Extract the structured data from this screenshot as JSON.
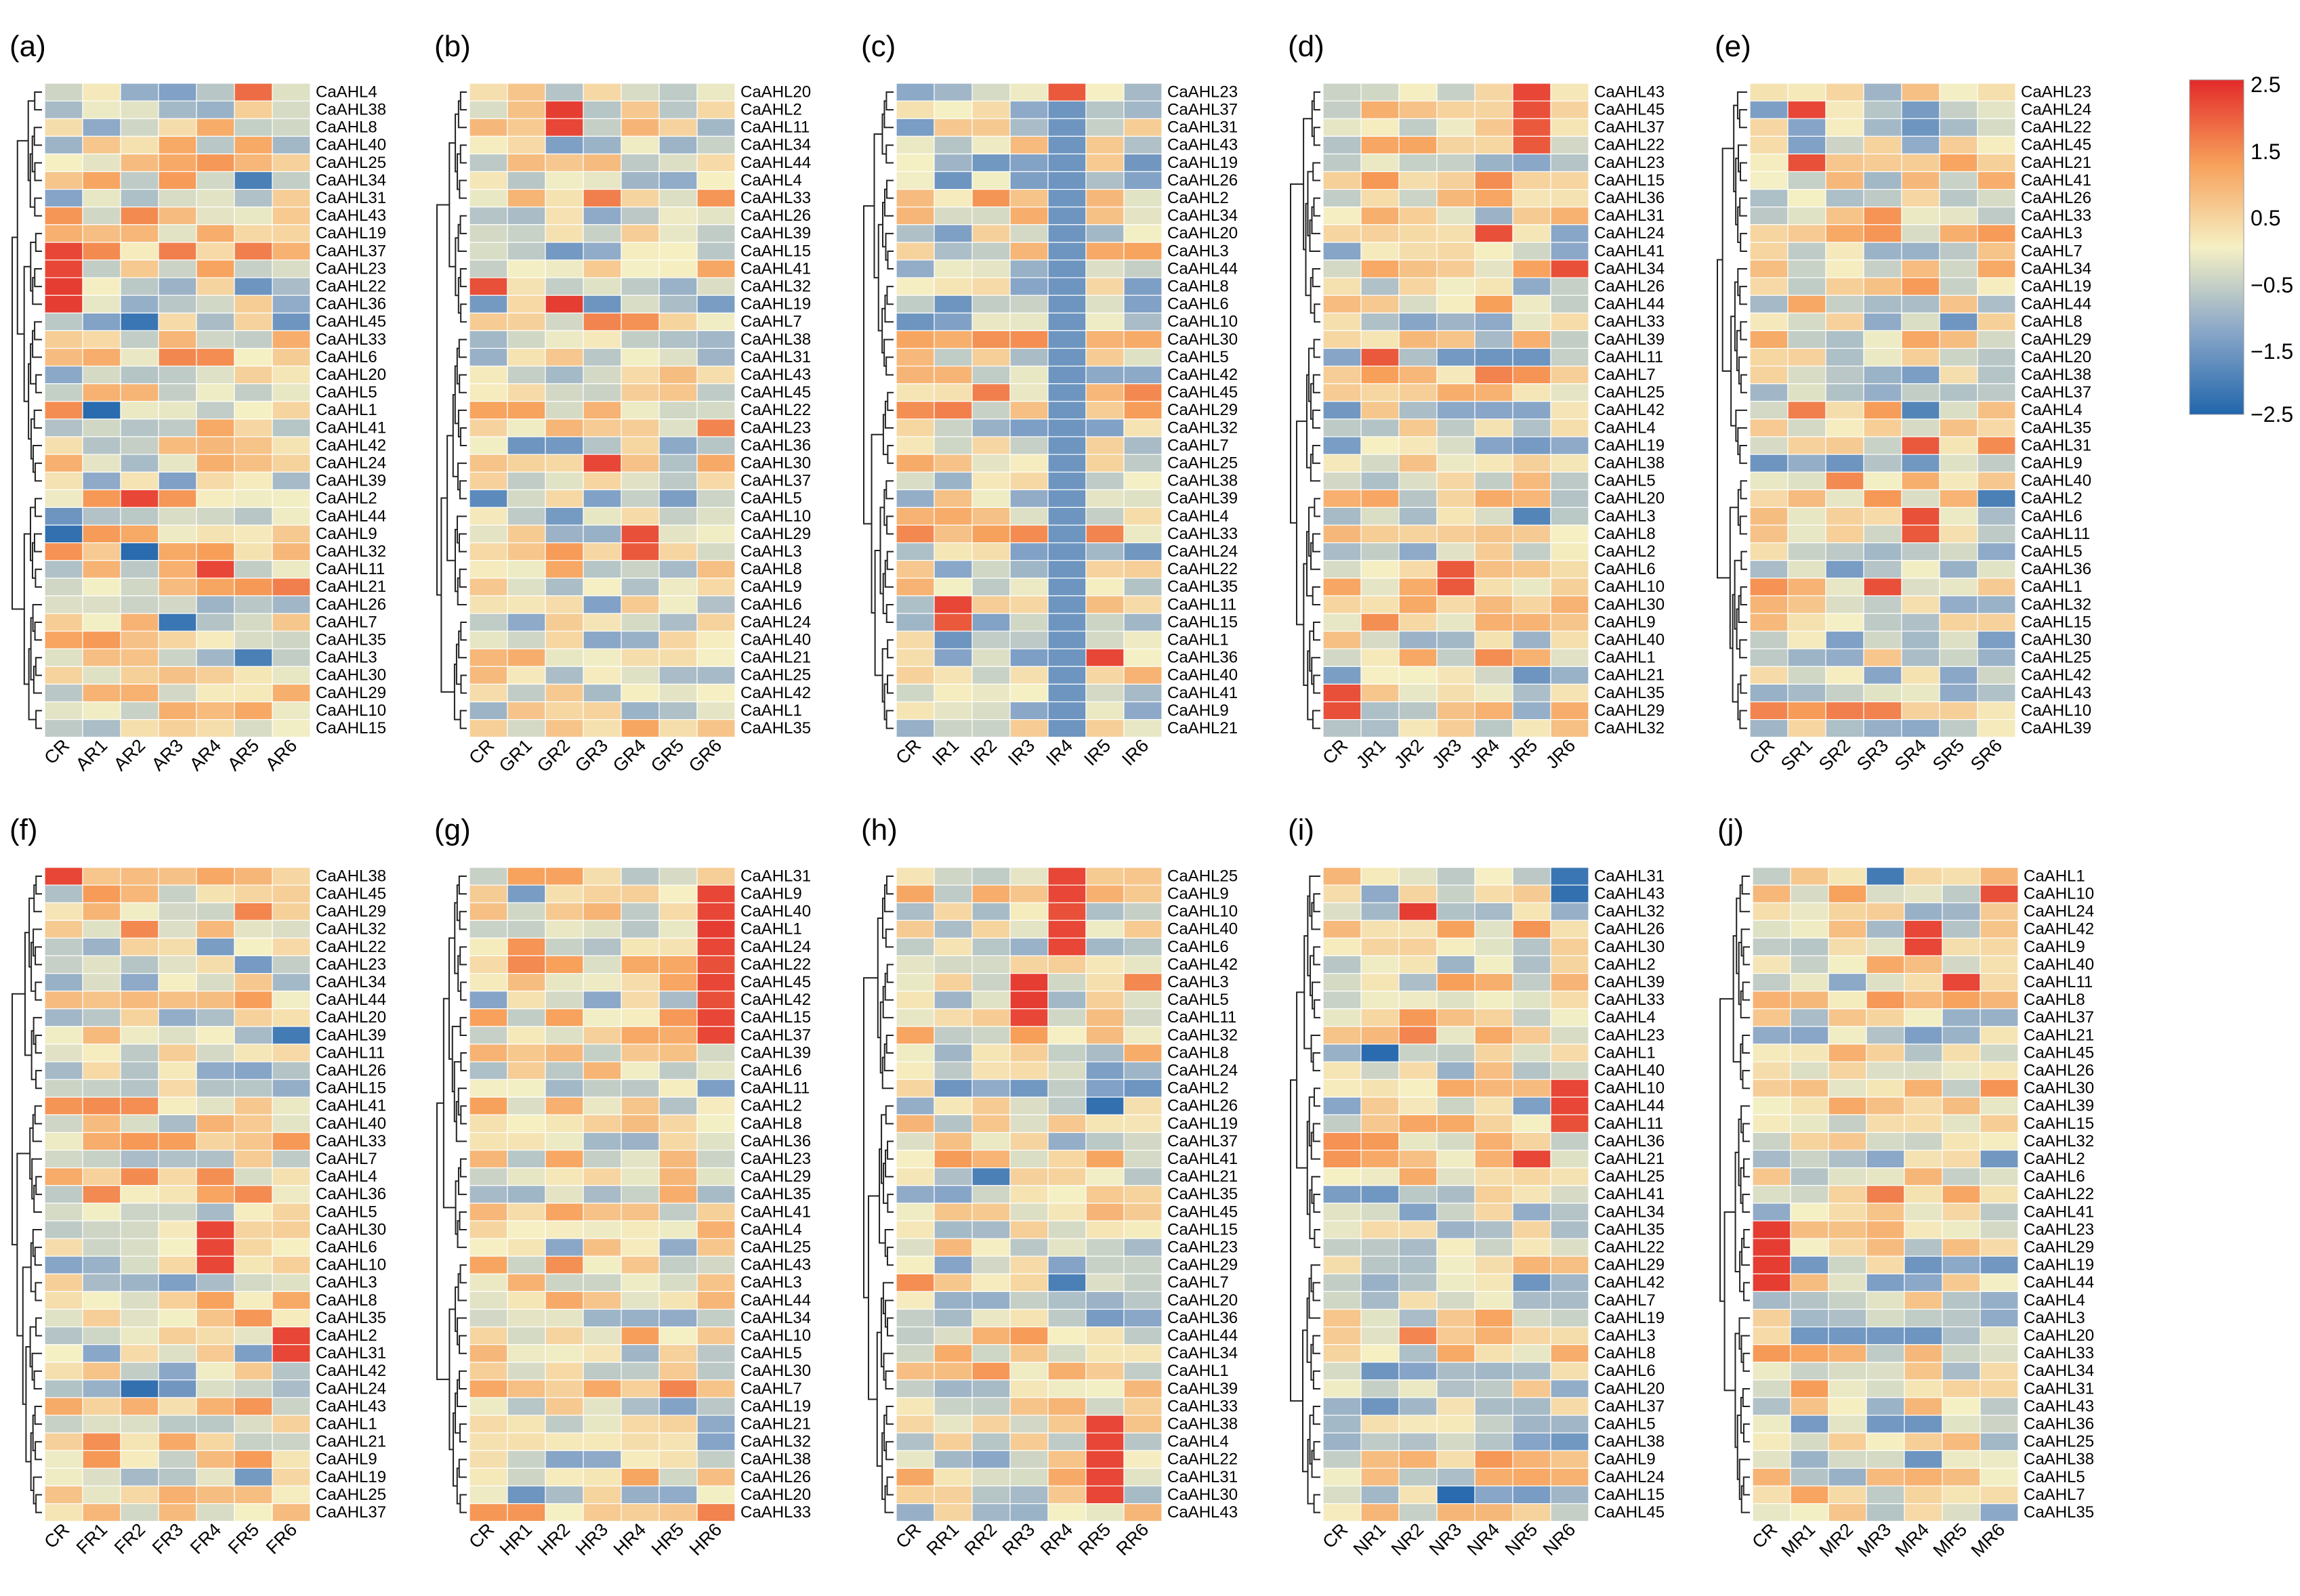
{
  "figure": {
    "colorbar": {
      "ticks": [
        "2.5",
        "1.5",
        "0.5",
        "−0.5",
        "−1.5",
        "−2.5"
      ],
      "min": -2.5,
      "max": 2.5,
      "colors": [
        "#2166ac",
        "#8aa7c8",
        "#f5f0c4",
        "#f7a05a",
        "#e32a2a"
      ]
    }
  },
  "chart_data": [
    {
      "type": "heatmap",
      "title": "(a)",
      "columns": [
        "CR",
        "AR1",
        "AR2",
        "AR3",
        "AR4",
        "AR5",
        "AR6"
      ],
      "rows": [
        "CaAHL4",
        "CaAHL38",
        "CaAHL8",
        "CaAHL40",
        "CaAHL25",
        "CaAHL34",
        "CaAHL31",
        "CaAHL43",
        "CaAHL19",
        "CaAHL37",
        "CaAHL23",
        "CaAHL22",
        "CaAHL36",
        "CaAHL45",
        "CaAHL33",
        "CaAHL6",
        "CaAHL20",
        "CaAHL5",
        "CaAHL1",
        "CaAHL41",
        "CaAHL42",
        "CaAHL24",
        "CaAHL39",
        "CaAHL2",
        "CaAHL44",
        "CaAHL9",
        "CaAHL32",
        "CaAHL11",
        "CaAHL21",
        "CaAHL26",
        "CaAHL7",
        "CaAHL35",
        "CaAHL3",
        "CaAHL30",
        "CaAHL29",
        "CaAHL10",
        "CaAHL15"
      ],
      "highlights": [
        [
          0,
          5,
          1.8
        ],
        [
          2,
          1,
          -1.2
        ],
        [
          5,
          5,
          -2.0
        ],
        [
          9,
          0,
          2.2
        ],
        [
          10,
          0,
          2.2
        ],
        [
          11,
          0,
          2.3
        ],
        [
          12,
          0,
          2.3
        ],
        [
          13,
          2,
          -2.2
        ],
        [
          18,
          1,
          -2.4
        ],
        [
          23,
          2,
          2.2
        ],
        [
          25,
          0,
          -2.3
        ],
        [
          26,
          2,
          -2.4
        ],
        [
          27,
          4,
          2.2
        ],
        [
          30,
          3,
          -2.2
        ],
        [
          32,
          5,
          -2.0
        ]
      ]
    },
    {
      "type": "heatmap",
      "title": "(b)",
      "columns": [
        "CR",
        "GR1",
        "GR2",
        "GR3",
        "GR4",
        "GR5",
        "GR6"
      ],
      "rows": [
        "CaAHL20",
        "CaAHL2",
        "CaAHL11",
        "CaAHL34",
        "CaAHL44",
        "CaAHL4",
        "CaAHL33",
        "CaAHL26",
        "CaAHL39",
        "CaAHL15",
        "CaAHL41",
        "CaAHL32",
        "CaAHL19",
        "CaAHL7",
        "CaAHL38",
        "CaAHL31",
        "CaAHL43",
        "CaAHL45",
        "CaAHL22",
        "CaAHL23",
        "CaAHL36",
        "CaAHL30",
        "CaAHL37",
        "CaAHL5",
        "CaAHL10",
        "CaAHL29",
        "CaAHL3",
        "CaAHL8",
        "CaAHL9",
        "CaAHL6",
        "CaAHL24",
        "CaAHL40",
        "CaAHL21",
        "CaAHL25",
        "CaAHL42",
        "CaAHL1",
        "CaAHL35"
      ],
      "highlights": [
        [
          1,
          2,
          2.3
        ],
        [
          2,
          2,
          2.2
        ],
        [
          11,
          0,
          2.1
        ],
        [
          12,
          2,
          2.3
        ],
        [
          21,
          3,
          2.2
        ],
        [
          23,
          0,
          -1.8
        ],
        [
          25,
          4,
          2.1
        ],
        [
          26,
          4,
          2.0
        ]
      ]
    },
    {
      "type": "heatmap",
      "title": "(c)",
      "columns": [
        "CR",
        "IR1",
        "IR2",
        "IR3",
        "IR4",
        "IR5",
        "IR6"
      ],
      "rows": [
        "CaAHL23",
        "CaAHL37",
        "CaAHL31",
        "CaAHL43",
        "CaAHL19",
        "CaAHL26",
        "CaAHL2",
        "CaAHL34",
        "CaAHL20",
        "CaAHL3",
        "CaAHL44",
        "CaAHL8",
        "CaAHL6",
        "CaAHL10",
        "CaAHL30",
        "CaAHL5",
        "CaAHL42",
        "CaAHL45",
        "CaAHL29",
        "CaAHL32",
        "CaAHL7",
        "CaAHL25",
        "CaAHL38",
        "CaAHL39",
        "CaAHL4",
        "CaAHL33",
        "CaAHL24",
        "CaAHL22",
        "CaAHL35",
        "CaAHL11",
        "CaAHL15",
        "CaAHL1",
        "CaAHL36",
        "CaAHL40",
        "CaAHL41",
        "CaAHL9",
        "CaAHL21"
      ],
      "highlights": [
        [
          0,
          4,
          2.0
        ],
        [
          29,
          1,
          2.2
        ],
        [
          30,
          1,
          2.0
        ],
        [
          32,
          5,
          2.2
        ]
      ],
      "column_bias": {
        "4": -1.9
      }
    },
    {
      "type": "heatmap",
      "title": "(d)",
      "columns": [
        "CR",
        "JR1",
        "JR2",
        "JR3",
        "JR4",
        "JR5",
        "JR6"
      ],
      "rows": [
        "CaAHL43",
        "CaAHL45",
        "CaAHL37",
        "CaAHL22",
        "CaAHL23",
        "CaAHL15",
        "CaAHL36",
        "CaAHL31",
        "CaAHL24",
        "CaAHL41",
        "CaAHL34",
        "CaAHL26",
        "CaAHL44",
        "CaAHL33",
        "CaAHL39",
        "CaAHL11",
        "CaAHL7",
        "CaAHL25",
        "CaAHL42",
        "CaAHL4",
        "CaAHL19",
        "CaAHL38",
        "CaAHL5",
        "CaAHL20",
        "CaAHL3",
        "CaAHL8",
        "CaAHL2",
        "CaAHL6",
        "CaAHL10",
        "CaAHL30",
        "CaAHL9",
        "CaAHL40",
        "CaAHL1",
        "CaAHL21",
        "CaAHL35",
        "CaAHL29",
        "CaAHL32"
      ],
      "highlights": [
        [
          0,
          5,
          2.2
        ],
        [
          1,
          5,
          2.1
        ],
        [
          2,
          5,
          2.0
        ],
        [
          3,
          5,
          2.0
        ],
        [
          8,
          4,
          2.1
        ],
        [
          10,
          6,
          2.1
        ],
        [
          15,
          1,
          2.0
        ],
        [
          24,
          5,
          -1.9
        ],
        [
          27,
          3,
          2.0
        ],
        [
          28,
          3,
          2.0
        ],
        [
          34,
          0,
          2.1
        ],
        [
          35,
          0,
          2.1
        ]
      ]
    },
    {
      "type": "heatmap",
      "title": "(e)",
      "columns": [
        "CR",
        "SR1",
        "SR2",
        "SR3",
        "SR4",
        "SR5",
        "SR6"
      ],
      "rows": [
        "CaAHL23",
        "CaAHL24",
        "CaAHL22",
        "CaAHL45",
        "CaAHL21",
        "CaAHL41",
        "CaAHL26",
        "CaAHL33",
        "CaAHL3",
        "CaAHL7",
        "CaAHL34",
        "CaAHL19",
        "CaAHL44",
        "CaAHL8",
        "CaAHL29",
        "CaAHL20",
        "CaAHL38",
        "CaAHL37",
        "CaAHL4",
        "CaAHL35",
        "CaAHL31",
        "CaAHL9",
        "CaAHL40",
        "CaAHL2",
        "CaAHL6",
        "CaAHL11",
        "CaAHL5",
        "CaAHL36",
        "CaAHL1",
        "CaAHL32",
        "CaAHL15",
        "CaAHL30",
        "CaAHL25",
        "CaAHL42",
        "CaAHL43",
        "CaAHL10",
        "CaAHL39"
      ],
      "highlights": [
        [
          1,
          1,
          2.2
        ],
        [
          4,
          1,
          2.1
        ],
        [
          18,
          4,
          -1.9
        ],
        [
          20,
          4,
          2.0
        ],
        [
          23,
          6,
          -2.0
        ],
        [
          24,
          4,
          2.1
        ],
        [
          25,
          4,
          2.0
        ],
        [
          28,
          3,
          2.1
        ]
      ]
    },
    {
      "type": "heatmap",
      "title": "(f)",
      "columns": [
        "CR",
        "FR1",
        "FR2",
        "FR3",
        "FR4",
        "FR5",
        "FR6"
      ],
      "rows": [
        "CaAHL38",
        "CaAHL45",
        "CaAHL29",
        "CaAHL32",
        "CaAHL22",
        "CaAHL23",
        "CaAHL34",
        "CaAHL44",
        "CaAHL20",
        "CaAHL39",
        "CaAHL11",
        "CaAHL26",
        "CaAHL15",
        "CaAHL41",
        "CaAHL40",
        "CaAHL33",
        "CaAHL7",
        "CaAHL4",
        "CaAHL36",
        "CaAHL5",
        "CaAHL30",
        "CaAHL6",
        "CaAHL10",
        "CaAHL3",
        "CaAHL8",
        "CaAHL35",
        "CaAHL2",
        "CaAHL31",
        "CaAHL42",
        "CaAHL24",
        "CaAHL43",
        "CaAHL1",
        "CaAHL21",
        "CaAHL9",
        "CaAHL19",
        "CaAHL25",
        "CaAHL37"
      ],
      "highlights": [
        [
          0,
          0,
          2.2
        ],
        [
          9,
          6,
          -2.1
        ],
        [
          20,
          4,
          2.2
        ],
        [
          21,
          4,
          2.2
        ],
        [
          22,
          4,
          2.2
        ],
        [
          26,
          6,
          2.2
        ],
        [
          27,
          6,
          2.2
        ],
        [
          29,
          2,
          -2.3
        ]
      ]
    },
    {
      "type": "heatmap",
      "title": "(g)",
      "columns": [
        "CR",
        "HR1",
        "HR2",
        "HR3",
        "HR4",
        "HR5",
        "HR6"
      ],
      "rows": [
        "CaAHL31",
        "CaAHL9",
        "CaAHL40",
        "CaAHL1",
        "CaAHL24",
        "CaAHL22",
        "CaAHL45",
        "CaAHL42",
        "CaAHL15",
        "CaAHL37",
        "CaAHL39",
        "CaAHL6",
        "CaAHL11",
        "CaAHL2",
        "CaAHL8",
        "CaAHL36",
        "CaAHL23",
        "CaAHL29",
        "CaAHL35",
        "CaAHL41",
        "CaAHL4",
        "CaAHL25",
        "CaAHL43",
        "CaAHL3",
        "CaAHL44",
        "CaAHL34",
        "CaAHL10",
        "CaAHL5",
        "CaAHL30",
        "CaAHL7",
        "CaAHL19",
        "CaAHL21",
        "CaAHL32",
        "CaAHL38",
        "CaAHL26",
        "CaAHL20",
        "CaAHL33"
      ],
      "highlights": [
        [
          1,
          6,
          2.2
        ],
        [
          2,
          6,
          2.2
        ],
        [
          3,
          6,
          2.3
        ],
        [
          4,
          6,
          2.2
        ],
        [
          5,
          6,
          2.1
        ],
        [
          6,
          6,
          2.2
        ],
        [
          7,
          6,
          2.1
        ],
        [
          8,
          6,
          2.2
        ],
        [
          9,
          6,
          2.2
        ]
      ]
    },
    {
      "type": "heatmap",
      "title": "(h)",
      "columns": [
        "CR",
        "RR1",
        "RR2",
        "RR3",
        "RR4",
        "RR5",
        "RR6"
      ],
      "rows": [
        "CaAHL25",
        "CaAHL9",
        "CaAHL10",
        "CaAHL40",
        "CaAHL6",
        "CaAHL42",
        "CaAHL3",
        "CaAHL5",
        "CaAHL11",
        "CaAHL32",
        "CaAHL8",
        "CaAHL24",
        "CaAHL2",
        "CaAHL26",
        "CaAHL19",
        "CaAHL37",
        "CaAHL41",
        "CaAHL21",
        "CaAHL35",
        "CaAHL45",
        "CaAHL15",
        "CaAHL23",
        "CaAHL29",
        "CaAHL7",
        "CaAHL20",
        "CaAHL36",
        "CaAHL44",
        "CaAHL34",
        "CaAHL1",
        "CaAHL39",
        "CaAHL33",
        "CaAHL38",
        "CaAHL4",
        "CaAHL22",
        "CaAHL31",
        "CaAHL30",
        "CaAHL43"
      ],
      "highlights": [
        [
          0,
          4,
          2.2
        ],
        [
          1,
          4,
          2.2
        ],
        [
          2,
          4,
          2.1
        ],
        [
          3,
          4,
          2.2
        ],
        [
          4,
          4,
          2.2
        ],
        [
          6,
          3,
          2.3
        ],
        [
          7,
          3,
          2.3
        ],
        [
          8,
          3,
          2.2
        ],
        [
          13,
          5,
          -2.3
        ],
        [
          17,
          2,
          -2.0
        ],
        [
          23,
          4,
          -2.0
        ],
        [
          31,
          5,
          2.2
        ],
        [
          32,
          5,
          2.2
        ],
        [
          33,
          5,
          2.2
        ],
        [
          34,
          5,
          2.2
        ],
        [
          35,
          5,
          2.2
        ]
      ]
    },
    {
      "type": "heatmap",
      "title": "(i)",
      "columns": [
        "CR",
        "NR1",
        "NR2",
        "NR3",
        "NR4",
        "NR5",
        "NR6"
      ],
      "rows": [
        "CaAHL31",
        "CaAHL43",
        "CaAHL32",
        "CaAHL26",
        "CaAHL30",
        "CaAHL2",
        "CaAHL39",
        "CaAHL33",
        "CaAHL4",
        "CaAHL23",
        "CaAHL1",
        "CaAHL40",
        "CaAHL10",
        "CaAHL44",
        "CaAHL11",
        "CaAHL36",
        "CaAHL21",
        "CaAHL25",
        "CaAHL41",
        "CaAHL34",
        "CaAHL35",
        "CaAHL22",
        "CaAHL29",
        "CaAHL42",
        "CaAHL7",
        "CaAHL19",
        "CaAHL3",
        "CaAHL8",
        "CaAHL6",
        "CaAHL20",
        "CaAHL37",
        "CaAHL5",
        "CaAHL38",
        "CaAHL9",
        "CaAHL24",
        "CaAHL15",
        "CaAHL45"
      ],
      "highlights": [
        [
          0,
          6,
          -2.2
        ],
        [
          1,
          6,
          -2.3
        ],
        [
          2,
          2,
          2.3
        ],
        [
          10,
          1,
          -2.4
        ],
        [
          16,
          5,
          2.2
        ],
        [
          35,
          3,
          -2.4
        ],
        [
          12,
          6,
          2.2
        ],
        [
          13,
          6,
          2.2
        ],
        [
          14,
          6,
          2.1
        ]
      ]
    },
    {
      "type": "heatmap",
      "title": "(j)",
      "columns": [
        "CR",
        "MR1",
        "MR2",
        "MR3",
        "MR4",
        "MR5",
        "MR6"
      ],
      "rows": [
        "CaAHL1",
        "CaAHL10",
        "CaAHL24",
        "CaAHL42",
        "CaAHL9",
        "CaAHL40",
        "CaAHL11",
        "CaAHL8",
        "CaAHL37",
        "CaAHL21",
        "CaAHL45",
        "CaAHL26",
        "CaAHL30",
        "CaAHL39",
        "CaAHL15",
        "CaAHL32",
        "CaAHL2",
        "CaAHL6",
        "CaAHL22",
        "CaAHL41",
        "CaAHL23",
        "CaAHL29",
        "CaAHL19",
        "CaAHL44",
        "CaAHL4",
        "CaAHL3",
        "CaAHL20",
        "CaAHL33",
        "CaAHL34",
        "CaAHL31",
        "CaAHL43",
        "CaAHL36",
        "CaAHL25",
        "CaAHL38",
        "CaAHL5",
        "CaAHL7",
        "CaAHL35"
      ],
      "highlights": [
        [
          0,
          3,
          -2.1
        ],
        [
          1,
          6,
          2.1
        ],
        [
          3,
          4,
          2.2
        ],
        [
          4,
          4,
          2.2
        ],
        [
          6,
          5,
          2.2
        ],
        [
          20,
          0,
          2.3
        ],
        [
          21,
          0,
          2.3
        ],
        [
          22,
          0,
          2.3
        ],
        [
          23,
          0,
          2.3
        ]
      ]
    }
  ]
}
